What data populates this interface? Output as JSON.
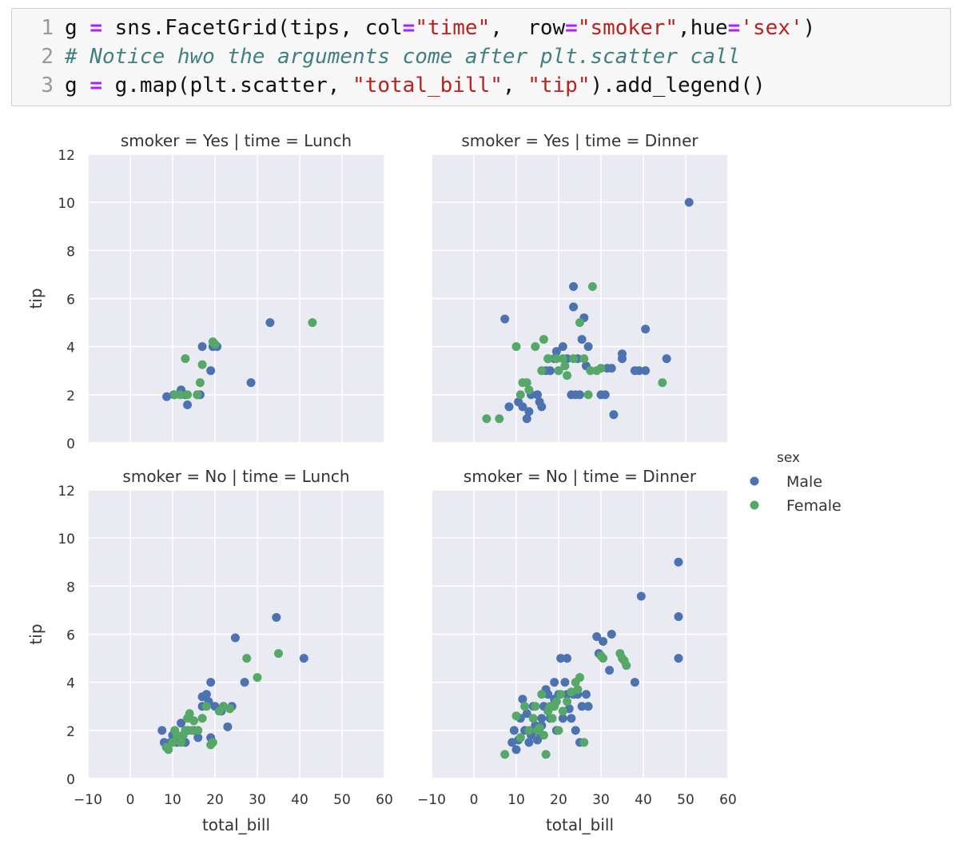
{
  "code": {
    "line_numbers": [
      "1",
      "2",
      "3"
    ],
    "line1": {
      "p1": "g ",
      "op1": "=",
      "p2": " sns.FacetGrid(tips, col",
      "op2": "=",
      "s1": "\"time\"",
      "p3": ",  row",
      "op3": "=",
      "s2": "\"smoker\"",
      "p4": ",hue",
      "op4": "=",
      "s3": "'sex'",
      "p5": ")"
    },
    "line2": {
      "comment": "# Notice hwo the arguments come after plt.scatter call"
    },
    "line3": {
      "p1": "g ",
      "op1": "=",
      "p2": " g.map(plt.scatter, ",
      "s1": "\"total_bill\"",
      "p3": ", ",
      "s2": "\"tip\"",
      "p4": ").add_legend()"
    }
  },
  "colors": {
    "male": "#4c72b0",
    "female": "#55a868",
    "panel_bg": "#eaeaf2",
    "grid": "#ffffff",
    "text": "#333333"
  },
  "chart_data": {
    "type": "scatter",
    "facet_titles": [
      "smoker = Yes | time = Lunch",
      "smoker = Yes | time = Dinner",
      "smoker = No | time = Lunch",
      "smoker = No | time = Dinner"
    ],
    "xlabel": "total_bill",
    "ylabel": "tip",
    "xlim": [
      -10,
      60
    ],
    "ylim": [
      0,
      12
    ],
    "xticks": [
      "−10",
      "0",
      "10",
      "20",
      "30",
      "40",
      "50",
      "60"
    ],
    "yticks": [
      "0",
      "2",
      "4",
      "6",
      "8",
      "10",
      "12"
    ],
    "legend": {
      "title": "sex",
      "entries": [
        "Male",
        "Female"
      ],
      "placement": "right"
    },
    "panels": [
      {
        "title": "smoker = Yes | time = Lunch",
        "series": [
          {
            "name": "Male",
            "points": [
              [
                8.6,
                1.92
              ],
              [
                10.3,
                2.0
              ],
              [
                12.0,
                2.2
              ],
              [
                13.0,
                2.0
              ],
              [
                13.5,
                1.58
              ],
              [
                16.0,
                2.0
              ],
              [
                16.5,
                2.0
              ],
              [
                17.0,
                4.0
              ],
              [
                19.0,
                3.0
              ],
              [
                19.5,
                4.0
              ],
              [
                20.5,
                4.0
              ],
              [
                28.5,
                2.5
              ],
              [
                33.0,
                5.0
              ]
            ]
          },
          {
            "name": "Female",
            "points": [
              [
                10.5,
                2.0
              ],
              [
                11.8,
                2.0
              ],
              [
                13.0,
                3.5
              ],
              [
                13.5,
                2.0
              ],
              [
                15.8,
                2.0
              ],
              [
                16.5,
                2.5
              ],
              [
                17.0,
                3.25
              ],
              [
                19.5,
                4.2
              ],
              [
                20.0,
                4.1
              ],
              [
                43.0,
                5.0
              ]
            ]
          }
        ]
      },
      {
        "title": "smoker = Yes | time = Dinner",
        "series": [
          {
            "name": "Male",
            "points": [
              [
                7.3,
                5.15
              ],
              [
                8.3,
                1.5
              ],
              [
                10.5,
                1.7
              ],
              [
                11.5,
                1.5
              ],
              [
                12.5,
                1.0
              ],
              [
                13.0,
                1.3
              ],
              [
                13.5,
                2.0
              ],
              [
                15.0,
                2.0
              ],
              [
                15.5,
                1.7
              ],
              [
                16.0,
                1.5
              ],
              [
                17.0,
                3.0
              ],
              [
                17.5,
                3.5
              ],
              [
                18.0,
                3.0
              ],
              [
                19.0,
                3.5
              ],
              [
                19.5,
                3.8
              ],
              [
                20.0,
                3.0
              ],
              [
                21.0,
                4.0
              ],
              [
                22.0,
                3.5
              ],
              [
                23.0,
                2.0
              ],
              [
                23.5,
                6.5
              ],
              [
                23.5,
                5.65
              ],
              [
                24.0,
                2.0
              ],
              [
                24.5,
                3.5
              ],
              [
                25.0,
                2.0
              ],
              [
                25.5,
                4.3
              ],
              [
                26.0,
                5.2
              ],
              [
                26.5,
                3.2
              ],
              [
                27.0,
                4.0
              ],
              [
                30.0,
                2.0
              ],
              [
                31.0,
                2.0
              ],
              [
                31.5,
                3.1
              ],
              [
                32.5,
                3.1
              ],
              [
                33.0,
                1.17
              ],
              [
                35.0,
                3.5
              ],
              [
                35.0,
                3.7
              ],
              [
                38.0,
                3.0
              ],
              [
                39.0,
                3.0
              ],
              [
                40.5,
                3.0
              ],
              [
                40.5,
                4.73
              ],
              [
                45.5,
                3.5
              ],
              [
                50.8,
                10.0
              ]
            ]
          },
          {
            "name": "Female",
            "points": [
              [
                3.0,
                1.0
              ],
              [
                6.0,
                1.0
              ],
              [
                10.0,
                4.0
              ],
              [
                11.0,
                2.0
              ],
              [
                11.5,
                2.5
              ],
              [
                12.5,
                2.5
              ],
              [
                13.0,
                2.2
              ],
              [
                14.5,
                4.0
              ],
              [
                16.0,
                3.0
              ],
              [
                16.5,
                4.3
              ],
              [
                17.5,
                3.5
              ],
              [
                19.5,
                3.5
              ],
              [
                20.0,
                3.0
              ],
              [
                21.0,
                3.5
              ],
              [
                21.5,
                3.2
              ],
              [
                22.0,
                2.8
              ],
              [
                23.5,
                3.5
              ],
              [
                25.0,
                5.0
              ],
              [
                26.0,
                3.5
              ],
              [
                27.0,
                2.0
              ],
              [
                27.5,
                3.0
              ],
              [
                28.0,
                6.5
              ],
              [
                29.0,
                3.0
              ],
              [
                30.0,
                3.1
              ],
              [
                44.5,
                2.5
              ]
            ]
          }
        ]
      },
      {
        "title": "smoker = No | time = Lunch",
        "series": [
          {
            "name": "Male",
            "points": [
              [
                7.5,
                2.0
              ],
              [
                8.0,
                1.5
              ],
              [
                9.5,
                1.5
              ],
              [
                10.0,
                1.8
              ],
              [
                11.0,
                1.5
              ],
              [
                12.0,
                2.3
              ],
              [
                13.0,
                1.5
              ],
              [
                13.5,
                2.0
              ],
              [
                15.0,
                2.0
              ],
              [
                16.0,
                1.7
              ],
              [
                17.0,
                3.0
              ],
              [
                17.0,
                3.4
              ],
              [
                18.0,
                3.5
              ],
              [
                18.5,
                3.2
              ],
              [
                19.0,
                4.0
              ],
              [
                19.0,
                1.7
              ],
              [
                20.0,
                3.0
              ],
              [
                21.5,
                2.8
              ],
              [
                22.0,
                3.0
              ],
              [
                23.0,
                2.15
              ],
              [
                24.0,
                3.0
              ],
              [
                24.8,
                5.85
              ],
              [
                27.0,
                4.0
              ],
              [
                34.5,
                6.7
              ],
              [
                41.0,
                5.0
              ]
            ]
          },
          {
            "name": "Female",
            "points": [
              [
                8.5,
                1.3
              ],
              [
                9.0,
                1.2
              ],
              [
                10.0,
                1.5
              ],
              [
                10.5,
                2.0
              ],
              [
                11.0,
                1.8
              ],
              [
                12.0,
                1.5
              ],
              [
                12.5,
                1.8
              ],
              [
                13.0,
                2.0
              ],
              [
                13.5,
                2.5
              ],
              [
                14.0,
                2.7
              ],
              [
                14.5,
                2.0
              ],
              [
                15.0,
                2.4
              ],
              [
                16.0,
                2.0
              ],
              [
                17.0,
                2.5
              ],
              [
                18.0,
                3.0
              ],
              [
                19.0,
                1.4
              ],
              [
                19.5,
                1.5
              ],
              [
                21.0,
                2.8
              ],
              [
                22.0,
                3.0
              ],
              [
                23.5,
                2.9
              ],
              [
                27.5,
                5.0
              ],
              [
                30.0,
                4.2
              ],
              [
                35.0,
                5.2
              ]
            ]
          }
        ]
      },
      {
        "title": "smoker = No | time = Dinner",
        "series": [
          {
            "name": "Male",
            "points": [
              [
                9.0,
                1.5
              ],
              [
                9.5,
                2.0
              ],
              [
                10.0,
                1.2
              ],
              [
                10.5,
                1.6
              ],
              [
                11.0,
                1.7
              ],
              [
                11.0,
                2.5
              ],
              [
                11.5,
                3.3
              ],
              [
                12.0,
                2.0
              ],
              [
                12.5,
                2.7
              ],
              [
                13.0,
                1.5
              ],
              [
                13.5,
                1.8
              ],
              [
                14.0,
                2.0
              ],
              [
                14.0,
                3.0
              ],
              [
                14.5,
                2.2
              ],
              [
                15.0,
                1.6
              ],
              [
                15.5,
                1.9
              ],
              [
                16.0,
                2.2
              ],
              [
                16.0,
                2.5
              ],
              [
                16.5,
                3.0
              ],
              [
                17.0,
                3.7
              ],
              [
                17.5,
                3.5
              ],
              [
                18.0,
                2.5
              ],
              [
                18.5,
                3.0
              ],
              [
                19.0,
                3.3
              ],
              [
                19.0,
                4.0
              ],
              [
                19.5,
                2.0
              ],
              [
                20.0,
                3.5
              ],
              [
                20.5,
                5.0
              ],
              [
                21.0,
                2.5
              ],
              [
                21.5,
                4.0
              ],
              [
                22.0,
                3.5
              ],
              [
                22.0,
                5.0
              ],
              [
                22.5,
                2.9
              ],
              [
                23.0,
                2.5
              ],
              [
                23.5,
                3.5
              ],
              [
                24.0,
                2.0
              ],
              [
                24.5,
                3.5
              ],
              [
                25.0,
                1.5
              ],
              [
                25.5,
                3.0
              ],
              [
                26.5,
                3.5
              ],
              [
                27.0,
                3.0
              ],
              [
                29.0,
                5.9
              ],
              [
                29.5,
                5.2
              ],
              [
                30.5,
                5.7
              ],
              [
                32.0,
                4.5
              ],
              [
                32.5,
                6.0
              ],
              [
                38.0,
                4.0
              ],
              [
                39.5,
                7.58
              ],
              [
                48.3,
                9.0
              ],
              [
                48.3,
                6.73
              ],
              [
                48.3,
                5.0
              ]
            ]
          },
          {
            "name": "Female",
            "points": [
              [
                7.3,
                1.0
              ],
              [
                10.0,
                2.6
              ],
              [
                11.0,
                1.7
              ],
              [
                12.0,
                3.0
              ],
              [
                13.0,
                2.0
              ],
              [
                14.0,
                2.5
              ],
              [
                14.5,
                3.0
              ],
              [
                15.0,
                2.0
              ],
              [
                15.5,
                2.1
              ],
              [
                16.0,
                3.5
              ],
              [
                16.5,
                1.8
              ],
              [
                17.0,
                1.0
              ],
              [
                17.5,
                2.8
              ],
              [
                18.0,
                3.0
              ],
              [
                18.5,
                2.5
              ],
              [
                19.0,
                3.0
              ],
              [
                19.5,
                3.2
              ],
              [
                20.0,
                2.0
              ],
              [
                20.5,
                3.5
              ],
              [
                21.0,
                2.8
              ],
              [
                22.0,
                3.2
              ],
              [
                23.0,
                3.6
              ],
              [
                24.0,
                4.0
              ],
              [
                24.5,
                3.7
              ],
              [
                25.0,
                4.2
              ],
              [
                26.0,
                1.5
              ],
              [
                30.0,
                5.1
              ],
              [
                30.5,
                5.0
              ],
              [
                34.5,
                5.2
              ],
              [
                35.0,
                5.0
              ],
              [
                35.5,
                4.9
              ],
              [
                36.0,
                4.7
              ]
            ]
          }
        ]
      }
    ]
  }
}
